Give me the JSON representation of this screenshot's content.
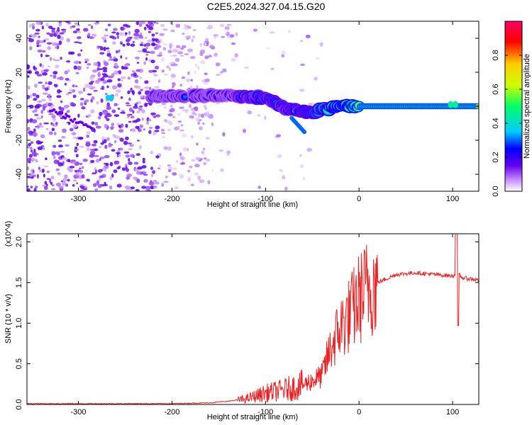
{
  "title": "C2E5.2024.327.04.15.G20",
  "chart_data": [
    {
      "type": "heatmap",
      "xlabel": "Height of straight line (km)",
      "ylabel": "Frequency (Hz)",
      "xlim": [
        -355,
        128
      ],
      "ylim": [
        -50,
        50
      ],
      "xticks": [
        -300,
        -200,
        -100,
        0,
        100
      ],
      "yticks": [
        -40,
        -20,
        0,
        20,
        40
      ],
      "colorbar": {
        "label": "Normalized spectral amplitude",
        "range": [
          0.0,
          1.0
        ],
        "ticks": [
          0.0,
          0.2,
          0.4,
          0.6,
          0.8
        ],
        "colors": [
          "#ffffff",
          "#cc99ff",
          "#6600ee",
          "#0000ff",
          "#00ccff",
          "#00ff66",
          "#ccff00",
          "#ffcc00",
          "#ff0000",
          "#ff0066"
        ]
      },
      "ridge": {
        "x": [
          -220,
          -175,
          -130,
          -100,
          -80,
          -60,
          -50,
          -40,
          -20,
          0,
          20,
          60,
          100,
          128
        ],
        "y": [
          6,
          6,
          6,
          5,
          -1,
          -3,
          -4,
          -2,
          0,
          0,
          0,
          0,
          0,
          0
        ]
      }
    },
    {
      "type": "line",
      "xlabel": "Height of straight line (km)",
      "ylabel": "SNR (10 * v/v)",
      "y_multiplier": "(x10^4)",
      "xlim": [
        -355,
        128
      ],
      "ylim": [
        0,
        2.1
      ],
      "xticks": [
        -300,
        -200,
        -100,
        0,
        100
      ],
      "yticks": [
        0.0,
        0.5,
        1.0,
        1.5,
        2.0
      ],
      "series": [
        {
          "color": "#ee2222",
          "x": [
            -355,
            -300,
            -250,
            -200,
            -160,
            -140,
            -120,
            -100,
            -80,
            -60,
            -40,
            -30,
            -20,
            -10,
            0,
            10,
            20,
            30,
            40,
            60,
            80,
            100,
            105,
            110,
            128
          ],
          "y": [
            0.01,
            0.01,
            0.01,
            0.01,
            0.02,
            0.04,
            0.07,
            0.14,
            0.18,
            0.24,
            0.35,
            0.7,
            0.95,
            1.1,
            1.3,
            1.45,
            1.5,
            1.55,
            1.6,
            1.62,
            1.6,
            1.58,
            1.62,
            1.56,
            1.53
          ]
        }
      ]
    }
  ]
}
